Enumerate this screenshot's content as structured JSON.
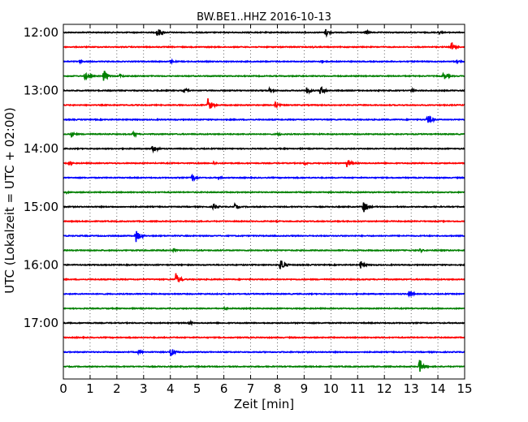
{
  "chart_data": {
    "type": "line",
    "title": "BW.BE1..HHZ 2016-10-13",
    "xlabel": "Zeit  [min]",
    "ylabel": "UTC (Lokalzeit = UTC + 02:00)",
    "xlim": [
      0,
      15
    ],
    "x_ticks": [
      0,
      1,
      2,
      3,
      4,
      5,
      6,
      7,
      8,
      9,
      10,
      11,
      12,
      13,
      14,
      15
    ],
    "x_tick_labels": [
      "0",
      "1",
      "2",
      "3",
      "4",
      "5",
      "6",
      "7",
      "8",
      "9",
      "10",
      "11",
      "12",
      "13",
      "14",
      "15"
    ],
    "y_tick_labels": [
      "12:00",
      "13:00",
      "14:00",
      "15:00",
      "16:00",
      "17:00"
    ],
    "grid": "vertical dotted",
    "legend": "none",
    "line_minutes": 15,
    "trace_colors": [
      "#000000",
      "#ff0000",
      "#0000ff",
      "#008000"
    ],
    "series": [
      {
        "start_utc": "12:00",
        "events": [
          {
            "minute": 3.5,
            "amplitude": 0.8
          },
          {
            "minute": 9.8,
            "amplitude": 0.6
          },
          {
            "minute": 11.3,
            "amplitude": 0.3
          },
          {
            "minute": 14.0,
            "amplitude": 0.3
          }
        ]
      },
      {
        "start_utc": "12:15",
        "events": [
          {
            "minute": 14.5,
            "amplitude": 0.8
          },
          {
            "minute": 9.3,
            "amplitude": 0.2
          }
        ]
      },
      {
        "start_utc": "12:30",
        "events": [
          {
            "minute": 0.6,
            "amplitude": 0.3
          },
          {
            "minute": 4.0,
            "amplitude": 0.3
          },
          {
            "minute": 9.6,
            "amplitude": 0.3
          },
          {
            "minute": 14.7,
            "amplitude": 0.3
          }
        ]
      },
      {
        "start_utc": "12:45",
        "events": [
          {
            "minute": 0.8,
            "amplitude": 0.6
          },
          {
            "minute": 1.5,
            "amplitude": 0.9
          },
          {
            "minute": 2.1,
            "amplitude": 0.3
          },
          {
            "minute": 14.2,
            "amplitude": 0.6
          }
        ]
      },
      {
        "start_utc": "13:00",
        "events": [
          {
            "minute": 4.5,
            "amplitude": 0.4
          },
          {
            "minute": 7.7,
            "amplitude": 0.4
          },
          {
            "minute": 9.1,
            "amplitude": 0.6
          },
          {
            "minute": 9.6,
            "amplitude": 0.7
          },
          {
            "minute": 13.0,
            "amplitude": 0.3
          }
        ]
      },
      {
        "start_utc": "13:15",
        "events": [
          {
            "minute": 5.4,
            "amplitude": 1.0
          },
          {
            "minute": 7.9,
            "amplitude": 0.5
          },
          {
            "minute": 15.0,
            "amplitude": 0.3
          }
        ]
      },
      {
        "start_utc": "13:30",
        "events": [
          {
            "minute": 13.6,
            "amplitude": 0.9
          }
        ]
      },
      {
        "start_utc": "13:45",
        "events": [
          {
            "minute": 0.3,
            "amplitude": 0.4
          },
          {
            "minute": 2.6,
            "amplitude": 0.4
          },
          {
            "minute": 8.0,
            "amplitude": 0.3
          }
        ]
      },
      {
        "start_utc": "14:00",
        "events": [
          {
            "minute": 3.3,
            "amplitude": 0.5
          },
          {
            "minute": 3.4,
            "amplitude": 0.5
          }
        ]
      },
      {
        "start_utc": "14:15",
        "events": [
          {
            "minute": 0.2,
            "amplitude": 0.4
          },
          {
            "minute": 5.6,
            "amplitude": 0.3
          },
          {
            "minute": 9.0,
            "amplitude": 0.3
          },
          {
            "minute": 10.6,
            "amplitude": 0.7
          }
        ]
      },
      {
        "start_utc": "14:30",
        "events": [
          {
            "minute": 4.8,
            "amplitude": 0.6
          },
          {
            "minute": 5.8,
            "amplitude": 0.3
          }
        ]
      },
      {
        "start_utc": "14:45",
        "events": [
          {
            "minute": 0.1,
            "amplitude": 0.2
          }
        ]
      },
      {
        "start_utc": "15:00",
        "events": [
          {
            "minute": 5.6,
            "amplitude": 0.5
          },
          {
            "minute": 6.4,
            "amplitude": 0.4
          },
          {
            "minute": 11.2,
            "amplitude": 1.0
          }
        ]
      },
      {
        "start_utc": "15:15",
        "events": []
      },
      {
        "start_utc": "15:30",
        "events": [
          {
            "minute": 2.7,
            "amplitude": 1.0
          }
        ]
      },
      {
        "start_utc": "15:45",
        "events": [
          {
            "minute": 4.1,
            "amplitude": 0.3
          },
          {
            "minute": 13.3,
            "amplitude": 0.3
          }
        ]
      },
      {
        "start_utc": "16:00",
        "events": [
          {
            "minute": 8.1,
            "amplitude": 1.1
          },
          {
            "minute": 11.1,
            "amplitude": 0.6
          }
        ]
      },
      {
        "start_utc": "16:15",
        "events": [
          {
            "minute": 4.2,
            "amplitude": 0.9
          }
        ]
      },
      {
        "start_utc": "16:30",
        "events": [
          {
            "minute": 12.9,
            "amplitude": 0.6
          }
        ]
      },
      {
        "start_utc": "16:45",
        "events": [
          {
            "minute": 6.0,
            "amplitude": 0.2
          }
        ]
      },
      {
        "start_utc": "17:00",
        "events": [
          {
            "minute": 4.7,
            "amplitude": 0.3
          }
        ]
      },
      {
        "start_utc": "17:15",
        "events": []
      },
      {
        "start_utc": "17:30",
        "events": [
          {
            "minute": 2.8,
            "amplitude": 0.3
          },
          {
            "minute": 4.0,
            "amplitude": 0.7
          }
        ]
      },
      {
        "start_utc": "17:45",
        "events": [
          {
            "minute": 13.3,
            "amplitude": 1.1
          }
        ]
      }
    ]
  }
}
